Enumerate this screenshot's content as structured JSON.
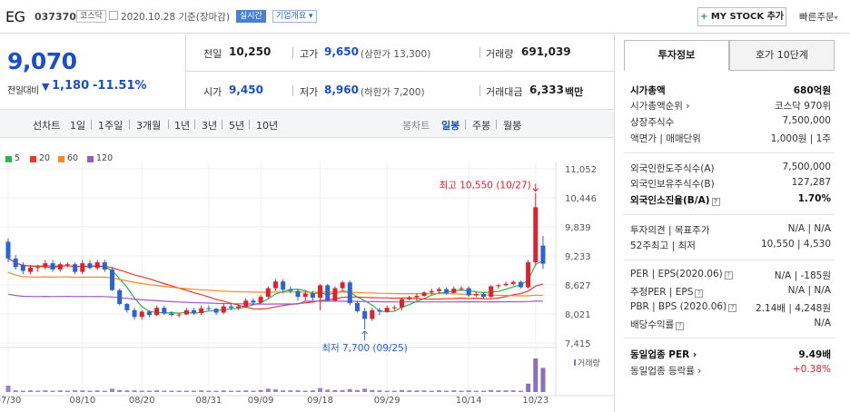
{
  "header": {
    "name": "EG",
    "code": "037370",
    "market": "코스닥",
    "date_text": "2020.10.28 기준(장마감)",
    "realtime": "실시간",
    "company_overview": "기업개요 ▾",
    "mystock_add": "MY STOCK 추가",
    "quick_order": "빠른주문",
    "quick_order_arrow": "▾"
  },
  "summary": {
    "price": "9,070",
    "diff_label": "전일대비",
    "diff_arrow": "▼",
    "diff_value": "1,180",
    "diff_rate": "-11.51%",
    "prev_label": "전일",
    "prev_value": "10,250",
    "open_label": "시가",
    "open_value": "9,450",
    "high_label": "고가",
    "high_value": "9,650",
    "high_limit": "(상한가 13,300)",
    "low_label": "저가",
    "low_value": "8,960",
    "low_limit": "(하한가 7,200)",
    "volume_label": "거래량",
    "volume_value": "691,039",
    "amount_label": "거래대금",
    "amount_value": "6,333",
    "amount_unit": "백만"
  },
  "nav": {
    "line_chart": "선차트",
    "periods": [
      "1일",
      "1주일",
      "3개월",
      "1년",
      "3년",
      "5년",
      "10년"
    ],
    "candle_chart": "봉차트",
    "candle_periods": [
      "일봉",
      "주봉",
      "월봉"
    ]
  },
  "chart_data": {
    "type": "candlestick",
    "legend": [
      {
        "name": "5",
        "color": "#2bb34a"
      },
      {
        "name": "20",
        "color": "#e8392d"
      },
      {
        "name": "60",
        "color": "#f08a24"
      },
      {
        "name": "120",
        "color": "#9b59c9"
      }
    ],
    "y_ticks": [
      "11,052",
      "10,446",
      "9,839",
      "9,233",
      "8,627",
      "8,021",
      "7,415"
    ],
    "ylim": [
      7415,
      11052
    ],
    "x_ticks": [
      "07/30",
      "08/10",
      "08/20",
      "08/31",
      "09/09",
      "09/18",
      "09/29",
      "10/14",
      "10/23"
    ],
    "high_label": "최고 10,550 (10/27)",
    "low_label": "최저 7,700 (09/25)",
    "volume_label": "거래량",
    "up_color": "#e0202c",
    "down_color": "#2b62d6",
    "candles": [
      [
        9530,
        9180,
        9600,
        9100
      ],
      [
        9180,
        9000,
        9250,
        8950
      ],
      [
        9050,
        8920,
        9100,
        8850
      ],
      [
        8900,
        8990,
        9050,
        8850
      ],
      [
        8990,
        9000,
        9050,
        8900
      ],
      [
        9000,
        9080,
        9150,
        8950
      ],
      [
        9080,
        8950,
        9150,
        8900
      ],
      [
        8950,
        9060,
        9100,
        8900
      ],
      [
        9060,
        9060,
        9100,
        9000
      ],
      [
        9060,
        8900,
        9100,
        8850
      ],
      [
        8900,
        9080,
        9150,
        8850
      ],
      [
        9080,
        8980,
        9150,
        8950
      ],
      [
        8980,
        9100,
        9150,
        8950
      ],
      [
        9100,
        8950,
        9150,
        8900
      ],
      [
        8950,
        8520,
        9000,
        8500
      ],
      [
        8520,
        8230,
        8550,
        8200
      ],
      [
        8230,
        8100,
        8250,
        8050
      ],
      [
        8100,
        7960,
        8150,
        7900
      ],
      [
        7960,
        8070,
        8100,
        7900
      ],
      [
        8070,
        8000,
        8100,
        7950
      ],
      [
        8000,
        8150,
        8200,
        7980
      ],
      [
        8150,
        8030,
        8200,
        8000
      ],
      [
        8030,
        8000,
        8080,
        7970
      ],
      [
        8000,
        8010,
        8050,
        7950
      ],
      [
        8010,
        8100,
        8150,
        8000
      ],
      [
        8100,
        8040,
        8150,
        8000
      ],
      [
        8040,
        8140,
        8200,
        8000
      ],
      [
        8140,
        8130,
        8200,
        8100
      ],
      [
        8130,
        8050,
        8150,
        8000
      ],
      [
        8050,
        8180,
        8250,
        8020
      ],
      [
        8180,
        8150,
        8250,
        8100
      ],
      [
        8150,
        8180,
        8230,
        8100
      ],
      [
        8180,
        8300,
        8350,
        8150
      ],
      [
        8300,
        8260,
        8350,
        8200
      ],
      [
        8260,
        8380,
        8420,
        8230
      ],
      [
        8380,
        8560,
        8600,
        8350
      ],
      [
        8560,
        8700,
        8750,
        8500
      ],
      [
        8700,
        8530,
        8750,
        8450
      ],
      [
        8530,
        8500,
        8600,
        8450
      ],
      [
        8500,
        8380,
        8550,
        8300
      ],
      [
        8380,
        8450,
        8500,
        8300
      ],
      [
        8450,
        8360,
        8500,
        8300
      ],
      [
        8360,
        8620,
        8650,
        8100
      ],
      [
        8620,
        8300,
        8650,
        8280
      ],
      [
        8300,
        8560,
        8600,
        8280
      ],
      [
        8560,
        8680,
        8720,
        8500
      ],
      [
        8680,
        8250,
        8720,
        8200
      ],
      [
        8250,
        8080,
        8300,
        8050
      ],
      [
        8080,
        7920,
        8150,
        7700
      ],
      [
        7920,
        8100,
        8150,
        7880
      ],
      [
        8100,
        8070,
        8150,
        8000
      ],
      [
        8070,
        8150,
        8200,
        8050
      ],
      [
        8150,
        8160,
        8200,
        8100
      ],
      [
        8160,
        8330,
        8350,
        8100
      ],
      [
        8330,
        8370,
        8400,
        8300
      ],
      [
        8370,
        8400,
        8450,
        8300
      ],
      [
        8400,
        8470,
        8500,
        8380
      ],
      [
        8470,
        8500,
        8550,
        8430
      ],
      [
        8500,
        8540,
        8580,
        8450
      ],
      [
        8540,
        8460,
        8580,
        8420
      ],
      [
        8460,
        8550,
        8600,
        8450
      ],
      [
        8550,
        8560,
        8600,
        8500
      ],
      [
        8560,
        8410,
        8600,
        8380
      ],
      [
        8410,
        8440,
        8480,
        8380
      ],
      [
        8440,
        8380,
        8480,
        8350
      ],
      [
        8380,
        8600,
        8620,
        8350
      ],
      [
        8600,
        8620,
        8650,
        8550
      ],
      [
        8620,
        8650,
        8700,
        8600
      ],
      [
        8650,
        8690,
        8720,
        8620
      ],
      [
        8690,
        8580,
        8720,
        8550
      ],
      [
        8580,
        9100,
        9150,
        8550
      ],
      [
        9100,
        10250,
        10550,
        9050
      ],
      [
        9450,
        9070,
        9650,
        8960
      ]
    ],
    "volumes": [
      0.19,
      0.05,
      0.04,
      0.05,
      0.04,
      0.05,
      0.04,
      0.05,
      0.04,
      0.05,
      0.05,
      0.04,
      0.05,
      0.04,
      0.1,
      0.06,
      0.05,
      0.05,
      0.04,
      0.04,
      0.05,
      0.04,
      0.04,
      0.04,
      0.04,
      0.04,
      0.05,
      0.04,
      0.04,
      0.05,
      0.04,
      0.04,
      0.05,
      0.04,
      0.06,
      0.1,
      0.08,
      0.05,
      0.05,
      0.05,
      0.04,
      0.05,
      0.12,
      0.07,
      0.06,
      0.06,
      0.09,
      0.06,
      0.1,
      0.06,
      0.05,
      0.04,
      0.04,
      0.06,
      0.05,
      0.05,
      0.05,
      0.04,
      0.05,
      0.04,
      0.05,
      0.04,
      0.05,
      0.04,
      0.04,
      0.06,
      0.05,
      0.05,
      0.05,
      0.04,
      0.25,
      1.0,
      0.72
    ]
  },
  "info_panel": {
    "tab_invest": "투자정보",
    "tab_orderbook": "호가 10단계",
    "rows": [
      {
        "label": "시가총액",
        "value": "680억원",
        "bold": true
      },
      {
        "label": "시가총액순위 ›",
        "value": "코스닥 970위"
      },
      {
        "label": "상장주식수",
        "value": "7,500,000"
      },
      {
        "label": "액면가 | 매매단위",
        "value": "1,000원 | 1주"
      },
      {
        "label": "외국인한도주식수(A)",
        "value": "7,500,000"
      },
      {
        "label": "외국인보유주식수(B)",
        "value": "127,287"
      },
      {
        "label": "외국인소진율(B/A)",
        "value": "1.70%",
        "bold": true,
        "icon": true
      },
      {
        "label": "투자의견 | 목표주가",
        "value": "N/A | N/A"
      },
      {
        "label": "52주최고 | 최저",
        "value": "10,550 | 4,530"
      },
      {
        "label": "PER | EPS(2020.06)",
        "value": "N/A | -185원",
        "icon": true
      },
      {
        "label": "추정PER | EPS",
        "value": "N/A | N/A",
        "icon": true
      },
      {
        "label": "PBR | BPS (2020.06)",
        "value": "2.14배 | 4,248원",
        "icon": true
      },
      {
        "label": "배당수익률",
        "value": "N/A",
        "icon": true
      },
      {
        "label": "동일업종 PER ›",
        "value": "9.49배",
        "bold": true
      },
      {
        "label": "동일업종 등락률 ›",
        "value": "+0.38%",
        "red": true
      }
    ]
  }
}
